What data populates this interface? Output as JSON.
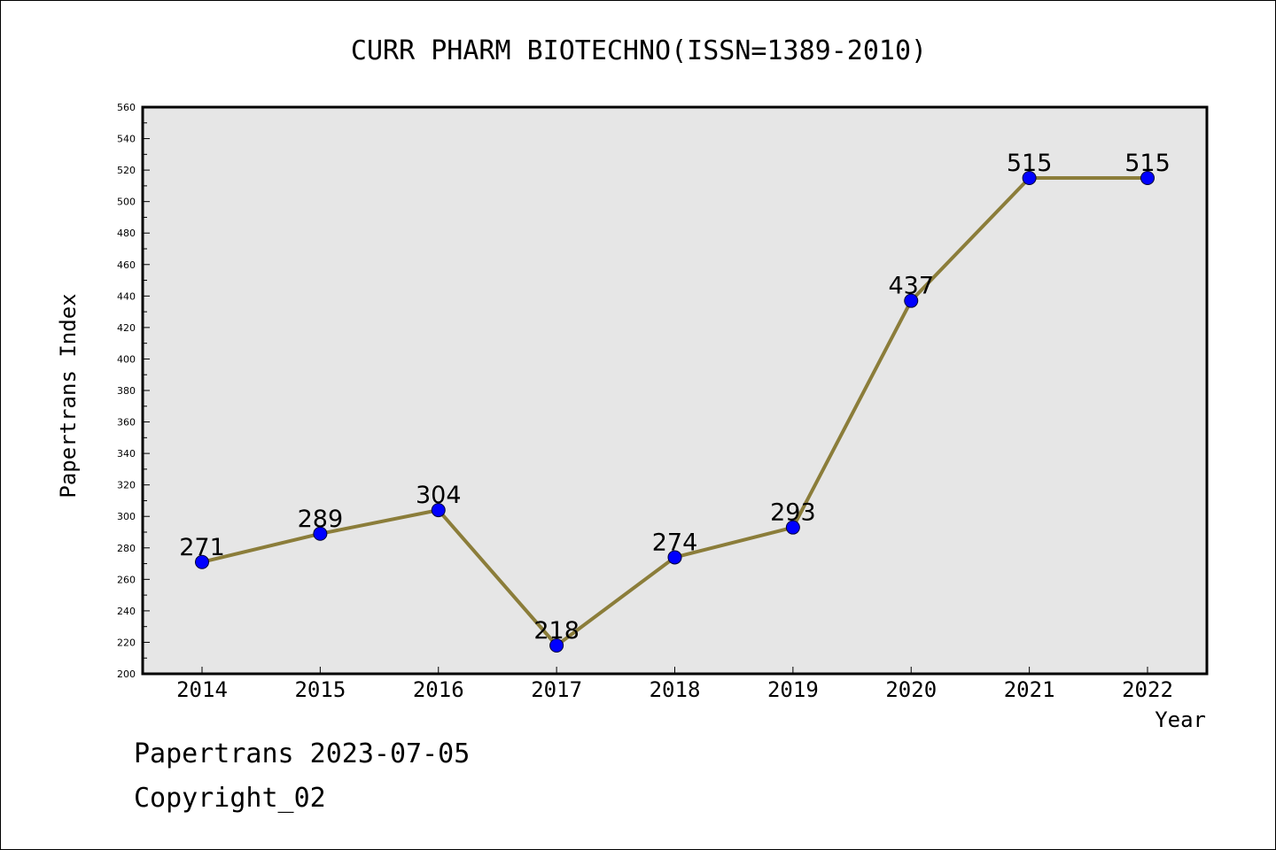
{
  "chart_data": {
    "type": "line",
    "title": "CURR PHARM BIOTECHNO(ISSN=1389-2010)",
    "xlabel": "Year",
    "ylabel": "Papertrans Index",
    "categories": [
      "2014",
      "2015",
      "2016",
      "2017",
      "2018",
      "2019",
      "2020",
      "2021",
      "2022"
    ],
    "values": [
      271,
      289,
      304,
      218,
      274,
      293,
      437,
      515,
      515
    ],
    "data_labels": [
      "271",
      "289",
      "304",
      "218",
      "274",
      "293",
      "437",
      "515",
      "515"
    ],
    "ylim": [
      200,
      560
    ],
    "y_major_step": 20,
    "y_minor_step": 10,
    "y_ticks": [
      "200",
      "220",
      "240",
      "260",
      "280",
      "300",
      "320",
      "340",
      "360",
      "380",
      "400",
      "420",
      "440",
      "460",
      "480",
      "500",
      "520",
      "540",
      "560"
    ],
    "grid": false,
    "legend": "none",
    "colors": {
      "line": "#8B7D3A",
      "marker": "#0000FF",
      "marker_edge": "#000033",
      "plot_background": "#E6E6E6",
      "page_background": "#FFFFFF"
    }
  },
  "footer": {
    "date_line": "Papertrans 2023-07-05",
    "copyright_line": "Copyright_02"
  }
}
